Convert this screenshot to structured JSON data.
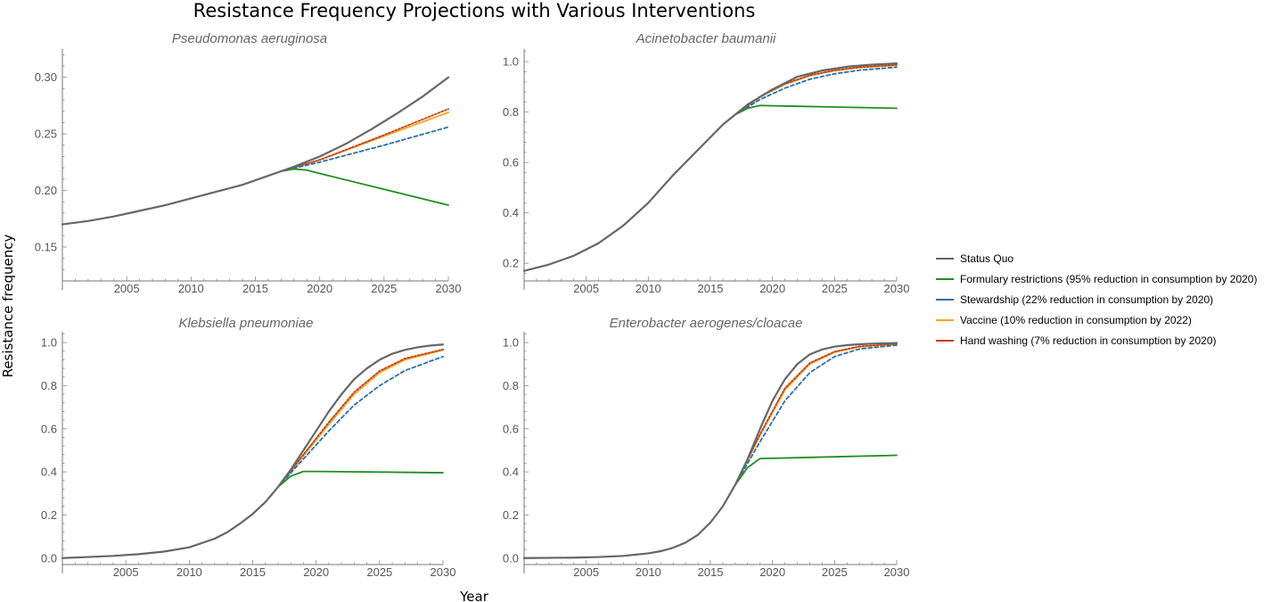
{
  "title": "Resistance Frequency Projections with Various Interventions",
  "xlabel": "Year",
  "ylabel": "Resistance frequency",
  "colors": {
    "status_quo": "#666666",
    "formulary": "#1f8f1f",
    "stewardship": "#2a6fb0",
    "vaccine": "#f5a623",
    "hand_washing": "#c8400f"
  },
  "legend": [
    {
      "key": "status_quo",
      "label": "Status Quo",
      "color": "#666666"
    },
    {
      "key": "formulary",
      "label": "Formulary restrictions (95% reduction in consumption by 2020)",
      "color": "#1f8f1f"
    },
    {
      "key": "stewardship",
      "label": "Stewardship (22% reduction in consumption by 2020)",
      "color": "#2a6fb0"
    },
    {
      "key": "vaccine",
      "label": "Vaccine (10% reduction in consumption by 2022)",
      "color": "#f5a623"
    },
    {
      "key": "hand_washing",
      "label": "Hand washing (7% reduction in consumption by 2020)",
      "color": "#c8400f"
    }
  ],
  "chart_data": [
    {
      "type": "line",
      "title": "Pseudomonas aeruginosa",
      "xlim": [
        2000,
        2030
      ],
      "ylim": [
        0.12,
        0.325
      ],
      "xticks": [
        2005,
        2010,
        2015,
        2020,
        2025,
        2030
      ],
      "yticks": [
        0.15,
        0.2,
        0.25,
        0.3
      ],
      "ytick_labels": [
        "0.15",
        "0.20",
        "0.25",
        "0.30"
      ],
      "series": [
        {
          "key": "status_quo",
          "x": [
            2000,
            2002,
            2004,
            2006,
            2008,
            2010,
            2012,
            2014,
            2016,
            2017,
            2018,
            2020,
            2022,
            2024,
            2026,
            2028,
            2030
          ],
          "y": [
            0.17,
            0.173,
            0.177,
            0.182,
            0.187,
            0.193,
            0.199,
            0.205,
            0.213,
            0.217,
            0.221,
            0.23,
            0.241,
            0.254,
            0.268,
            0.283,
            0.3
          ]
        },
        {
          "key": "formulary",
          "x": [
            2017,
            2018,
            2019,
            2020,
            2025,
            2030
          ],
          "y": [
            0.217,
            0.219,
            0.218,
            0.215,
            0.201,
            0.187
          ]
        },
        {
          "key": "stewardship",
          "x": [
            2017,
            2020,
            2025,
            2030
          ],
          "y": [
            0.217,
            0.225,
            0.24,
            0.256
          ]
        },
        {
          "key": "vaccine",
          "x": [
            2017,
            2020,
            2025,
            2030
          ],
          "y": [
            0.217,
            0.227,
            0.248,
            0.269
          ]
        },
        {
          "key": "hand_washing",
          "x": [
            2017,
            2020,
            2025,
            2030
          ],
          "y": [
            0.217,
            0.227,
            0.249,
            0.272
          ]
        }
      ]
    },
    {
      "type": "line",
      "title": "Acinetobacter baumanii",
      "xlim": [
        2000,
        2030
      ],
      "ylim": [
        0.13,
        1.05
      ],
      "xticks": [
        2005,
        2010,
        2015,
        2020,
        2025,
        2030
      ],
      "yticks": [
        0.2,
        0.4,
        0.6,
        0.8,
        1.0
      ],
      "ytick_labels": [
        "0.2",
        "0.4",
        "0.6",
        "0.8",
        "1.0"
      ],
      "series": [
        {
          "key": "status_quo",
          "x": [
            2000,
            2002,
            2004,
            2006,
            2008,
            2010,
            2012,
            2014,
            2016,
            2017,
            2018,
            2020,
            2022,
            2024,
            2026,
            2028,
            2030
          ],
          "y": [
            0.17,
            0.195,
            0.23,
            0.28,
            0.35,
            0.44,
            0.55,
            0.65,
            0.75,
            0.79,
            0.83,
            0.89,
            0.94,
            0.965,
            0.98,
            0.988,
            0.993
          ]
        },
        {
          "key": "formulary",
          "x": [
            2017,
            2018,
            2019,
            2020,
            2025,
            2030
          ],
          "y": [
            0.79,
            0.815,
            0.826,
            0.825,
            0.82,
            0.815
          ]
        },
        {
          "key": "stewardship",
          "x": [
            2017,
            2019,
            2021,
            2023,
            2025,
            2027,
            2030
          ],
          "y": [
            0.79,
            0.85,
            0.895,
            0.93,
            0.952,
            0.966,
            0.978
          ]
        },
        {
          "key": "vaccine",
          "x": [
            2017,
            2019,
            2021,
            2023,
            2025,
            2027,
            2030
          ],
          "y": [
            0.79,
            0.86,
            0.91,
            0.944,
            0.964,
            0.976,
            0.985
          ]
        },
        {
          "key": "hand_washing",
          "x": [
            2017,
            2019,
            2021,
            2023,
            2025,
            2027,
            2030
          ],
          "y": [
            0.79,
            0.862,
            0.912,
            0.946,
            0.966,
            0.978,
            0.987
          ]
        }
      ]
    },
    {
      "type": "line",
      "title": "Klebsiella pneumoniae",
      "xlim": [
        2000,
        2030
      ],
      "ylim": [
        -0.03,
        1.05
      ],
      "xticks": [
        2005,
        2010,
        2015,
        2020,
        2025,
        2030
      ],
      "yticks": [
        0.0,
        0.2,
        0.4,
        0.6,
        0.8,
        1.0
      ],
      "ytick_labels": [
        "0.0",
        "0.2",
        "0.4",
        "0.6",
        "0.8",
        "1.0"
      ],
      "series": [
        {
          "key": "status_quo",
          "x": [
            2000,
            2002,
            2004,
            2006,
            2008,
            2010,
            2012,
            2013,
            2014,
            2015,
            2016,
            2017,
            2018,
            2019,
            2020,
            2021,
            2022,
            2023,
            2024,
            2025,
            2026,
            2027,
            2028,
            2029,
            2030
          ],
          "y": [
            0.0,
            0.005,
            0.01,
            0.018,
            0.03,
            0.05,
            0.09,
            0.12,
            0.16,
            0.205,
            0.26,
            0.33,
            0.41,
            0.5,
            0.59,
            0.68,
            0.76,
            0.83,
            0.88,
            0.92,
            0.948,
            0.966,
            0.978,
            0.986,
            0.991
          ]
        },
        {
          "key": "formulary",
          "x": [
            2017,
            2018,
            2019,
            2020,
            2025,
            2030
          ],
          "y": [
            0.33,
            0.38,
            0.402,
            0.402,
            0.399,
            0.396
          ]
        },
        {
          "key": "stewardship",
          "x": [
            2017,
            2019,
            2021,
            2023,
            2025,
            2027,
            2030
          ],
          "y": [
            0.33,
            0.46,
            0.59,
            0.71,
            0.8,
            0.87,
            0.935
          ]
        },
        {
          "key": "vaccine",
          "x": [
            2017,
            2019,
            2021,
            2023,
            2025,
            2027,
            2030
          ],
          "y": [
            0.33,
            0.475,
            0.62,
            0.76,
            0.86,
            0.92,
            0.965
          ]
        },
        {
          "key": "hand_washing",
          "x": [
            2017,
            2019,
            2021,
            2023,
            2025,
            2027,
            2030
          ],
          "y": [
            0.33,
            0.48,
            0.63,
            0.77,
            0.868,
            0.926,
            0.968
          ]
        }
      ]
    },
    {
      "type": "line",
      "title": "Enterobacter aerogenes/cloacae",
      "xlim": [
        2000,
        2030
      ],
      "ylim": [
        -0.03,
        1.05
      ],
      "xticks": [
        2005,
        2010,
        2015,
        2020,
        2025,
        2030
      ],
      "yticks": [
        0.0,
        0.2,
        0.4,
        0.6,
        0.8,
        1.0
      ],
      "ytick_labels": [
        "0.0",
        "0.2",
        "0.4",
        "0.6",
        "0.8",
        "1.0"
      ],
      "series": [
        {
          "key": "status_quo",
          "x": [
            2000,
            2004,
            2006,
            2008,
            2010,
            2011,
            2012,
            2013,
            2014,
            2015,
            2016,
            2017,
            2018,
            2019,
            2020,
            2021,
            2022,
            2023,
            2024,
            2025,
            2026,
            2027,
            2028,
            2030
          ],
          "y": [
            0.0,
            0.002,
            0.005,
            0.01,
            0.022,
            0.032,
            0.048,
            0.072,
            0.108,
            0.165,
            0.24,
            0.34,
            0.46,
            0.6,
            0.73,
            0.83,
            0.9,
            0.945,
            0.968,
            0.981,
            0.988,
            0.992,
            0.995,
            0.998
          ]
        },
        {
          "key": "formulary",
          "x": [
            2017,
            2018,
            2019,
            2020,
            2025,
            2030
          ],
          "y": [
            0.34,
            0.42,
            0.462,
            0.463,
            0.47,
            0.477
          ]
        },
        {
          "key": "stewardship",
          "x": [
            2017,
            2019,
            2021,
            2023,
            2025,
            2027,
            2030
          ],
          "y": [
            0.34,
            0.54,
            0.73,
            0.86,
            0.935,
            0.97,
            0.988
          ]
        },
        {
          "key": "vaccine",
          "x": [
            2017,
            2019,
            2021,
            2023,
            2025,
            2027,
            2030
          ],
          "y": [
            0.34,
            0.57,
            0.78,
            0.9,
            0.955,
            0.98,
            0.993
          ]
        },
        {
          "key": "hand_washing",
          "x": [
            2017,
            2019,
            2021,
            2023,
            2025,
            2027,
            2030
          ],
          "y": [
            0.34,
            0.575,
            0.788,
            0.905,
            0.958,
            0.982,
            0.994
          ]
        }
      ]
    }
  ]
}
